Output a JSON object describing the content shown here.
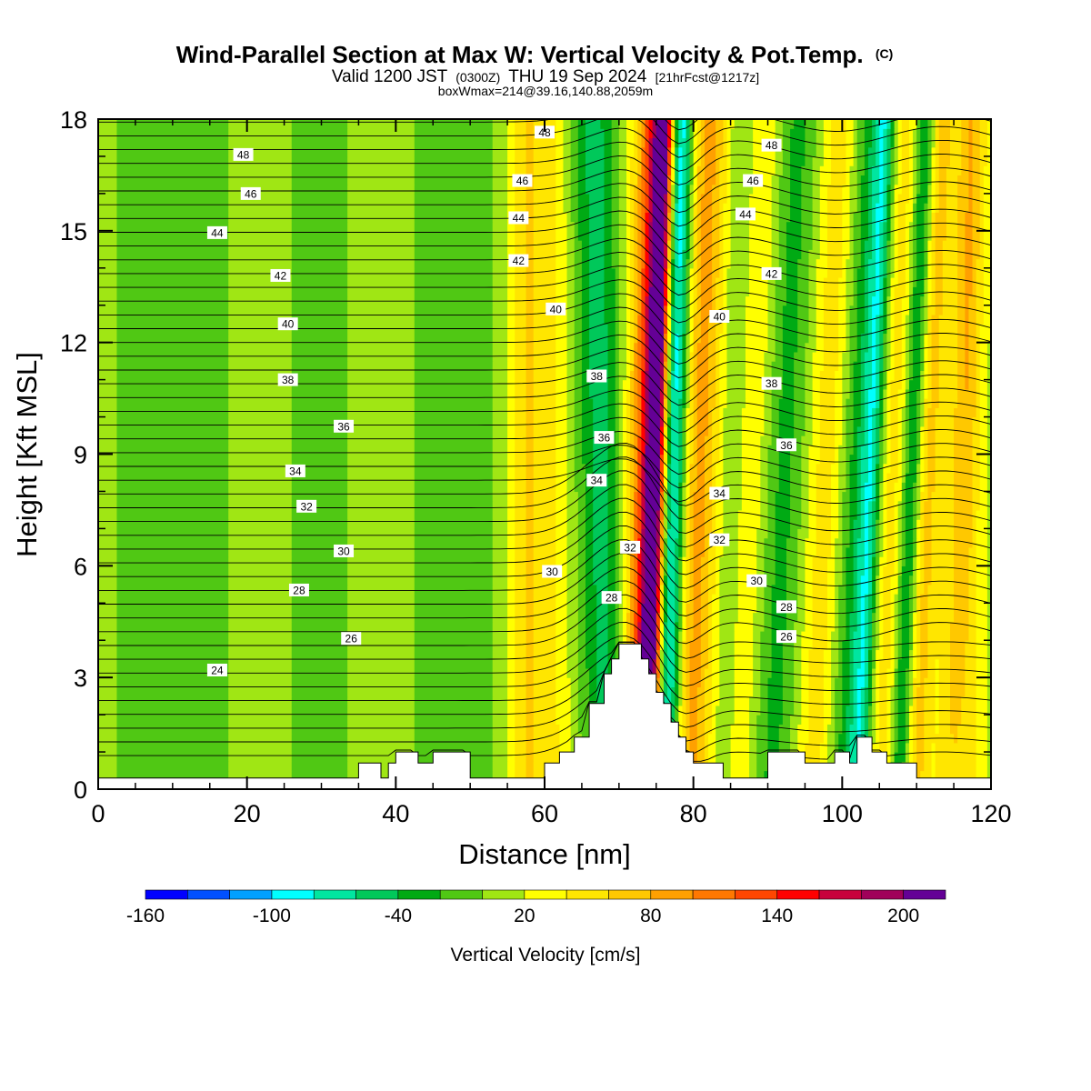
{
  "header": {
    "title": "Wind-Parallel Section at Max W: Vertical Velocity & Pot.Temp.",
    "copyright_mark": "(C)",
    "subtitle_valid": "Valid 1200 JST",
    "subtitle_utc": "(0300Z)",
    "subtitle_date": "THU 19 Sep 2024",
    "subtitle_fcst": "[21hrFcst@1217z]",
    "subtitle_box": "boxWmax=214@39.16,140.88,2059m"
  },
  "chart_data": {
    "type": "heatmap",
    "xlabel": "Distance [nm]",
    "ylabel": "Height [Kft MSL]",
    "xlim": [
      0,
      120
    ],
    "ylim": [
      0,
      18
    ],
    "x_ticks": [
      0,
      20,
      40,
      60,
      80,
      100,
      120
    ],
    "x_tick_labels": [
      "0",
      "20",
      "40",
      "60",
      "80",
      "100",
      "120"
    ],
    "y_ticks": [
      0,
      3,
      6,
      9,
      12,
      15,
      18
    ],
    "y_tick_labels": [
      "0",
      "3",
      "6",
      "9",
      "12",
      "15",
      "18"
    ],
    "grid": false,
    "colorbar": {
      "title": "Vertical Velocity [cm/s]",
      "placement": "bottom",
      "bounds": [
        -160,
        -140,
        -120,
        -100,
        -80,
        -60,
        -40,
        -20,
        0,
        20,
        40,
        60,
        80,
        100,
        120,
        140,
        160,
        180,
        200,
        220
      ],
      "colors": [
        "#0000ff",
        "#0050ff",
        "#00a0ff",
        "#00ffff",
        "#00e6a0",
        "#00c85a",
        "#00aa14",
        "#50c814",
        "#a0e614",
        "#ffff00",
        "#ffe600",
        "#ffc800",
        "#ffa000",
        "#ff7800",
        "#ff4600",
        "#ff0000",
        "#c8003c",
        "#a0005a",
        "#640096"
      ],
      "tick_values": [
        -160,
        -100,
        -40,
        20,
        80,
        140,
        200
      ],
      "tick_labels": [
        "-160",
        "-100",
        "-40",
        "20",
        "80",
        "140",
        "200"
      ]
    },
    "terrain_kft": [
      [
        0,
        0.3
      ],
      [
        35,
        0.3
      ],
      [
        35,
        0.7
      ],
      [
        38,
        0.7
      ],
      [
        38,
        0.3
      ],
      [
        39,
        0.3
      ],
      [
        39,
        0.7
      ],
      [
        40,
        0.7
      ],
      [
        40,
        1.0
      ],
      [
        43,
        1.0
      ],
      [
        43,
        0.7
      ],
      [
        45,
        0.7
      ],
      [
        45,
        1.0
      ],
      [
        50,
        1.0
      ],
      [
        50,
        0.3
      ],
      [
        60,
        0.3
      ],
      [
        60,
        0.7
      ],
      [
        62,
        0.7
      ],
      [
        62,
        1.0
      ],
      [
        64,
        1.0
      ],
      [
        64,
        1.4
      ],
      [
        66,
        1.4
      ],
      [
        66,
        2.3
      ],
      [
        68,
        2.3
      ],
      [
        68,
        3.1
      ],
      [
        69,
        3.1
      ],
      [
        69,
        3.5
      ],
      [
        70,
        3.5
      ],
      [
        70,
        3.9
      ],
      [
        73,
        3.9
      ],
      [
        73,
        3.5
      ],
      [
        74,
        3.5
      ],
      [
        74,
        3.1
      ],
      [
        75,
        3.1
      ],
      [
        75,
        2.6
      ],
      [
        76,
        2.6
      ],
      [
        76,
        2.3
      ],
      [
        77,
        2.3
      ],
      [
        77,
        1.8
      ],
      [
        78,
        1.8
      ],
      [
        78,
        1.4
      ],
      [
        79,
        1.4
      ],
      [
        79,
        1.0
      ],
      [
        80,
        1.0
      ],
      [
        80,
        0.7
      ],
      [
        84,
        0.7
      ],
      [
        84,
        0.3
      ],
      [
        90,
        0.3
      ],
      [
        90,
        1.0
      ],
      [
        95,
        1.0
      ],
      [
        95,
        0.7
      ],
      [
        99,
        0.7
      ],
      [
        99,
        1.0
      ],
      [
        101,
        1.0
      ],
      [
        101,
        0.7
      ],
      [
        102,
        0.7
      ],
      [
        102,
        1.4
      ],
      [
        104,
        1.4
      ],
      [
        104,
        1.0
      ],
      [
        106,
        1.0
      ],
      [
        106,
        0.7
      ],
      [
        110,
        0.7
      ],
      [
        110,
        0.3
      ],
      [
        120,
        0.3
      ]
    ],
    "w_features": [
      {
        "x": 76.5,
        "halfwidth": 2.0,
        "tilt": 0.12,
        "value": -160
      },
      {
        "x": 74.5,
        "halfwidth": 1.5,
        "tilt": 0.12,
        "value": 200
      },
      {
        "x": 73.0,
        "halfwidth": 2.5,
        "tilt": 0.12,
        "value": 110
      },
      {
        "x": 80.5,
        "halfwidth": 4.0,
        "tilt": 0.15,
        "value": 90
      },
      {
        "x": 84.0,
        "halfwidth": 3.0,
        "tilt": 0.15,
        "value": -60
      },
      {
        "x": 68.0,
        "halfwidth": 3.0,
        "tilt": -0.1,
        "value": -60
      },
      {
        "x": 86.5,
        "halfwidth": 3.0,
        "tilt": 0.2,
        "value": 40
      },
      {
        "x": 91.0,
        "halfwidth": 3.0,
        "tilt": 0.2,
        "value": -40
      },
      {
        "x": 97.0,
        "halfwidth": 2.5,
        "tilt": 0.2,
        "value": 40
      },
      {
        "x": 101.0,
        "halfwidth": 2.5,
        "tilt": 0.2,
        "value": -40
      },
      {
        "x": 103.0,
        "halfwidth": 1.5,
        "tilt": 0.2,
        "value": -80
      },
      {
        "x": 106.0,
        "halfwidth": 2.5,
        "tilt": 0.2,
        "value": 40
      },
      {
        "x": 108.5,
        "halfwidth": 1.5,
        "tilt": 0.2,
        "value": -80
      },
      {
        "x": 110.5,
        "halfwidth": 2.0,
        "tilt": 0.2,
        "value": 60
      },
      {
        "x": 115.0,
        "halfwidth": 2.0,
        "tilt": 0.2,
        "value": 40
      },
      {
        "x": 117.0,
        "halfwidth": 2.0,
        "tilt": 0.0,
        "value": 30
      },
      {
        "x": 60.0,
        "halfwidth": 3.0,
        "tilt": 0.0,
        "value": 40
      },
      {
        "x": 50.0,
        "halfwidth": 3.0,
        "tilt": 0.0,
        "value": -30
      },
      {
        "x": 57.0,
        "halfwidth": 2.0,
        "tilt": 0.0,
        "value": 30
      },
      {
        "x": 44.5,
        "halfwidth": 2.0,
        "tilt": 0.0,
        "value": -30
      },
      {
        "x": 10.0,
        "halfwidth": 9.0,
        "tilt": 0.0,
        "value": -25
      },
      {
        "x": 30.0,
        "halfwidth": 5.0,
        "tilt": 0.0,
        "value": -20
      }
    ],
    "theta_label_values": [
      24,
      26,
      28,
      30,
      32,
      34,
      36,
      38,
      40,
      42,
      44,
      46,
      48
    ],
    "contour_labels": [
      {
        "text": "48",
        "x": 19.5,
        "y": 17.05
      },
      {
        "text": "46",
        "x": 20.5,
        "y": 16.0
      },
      {
        "text": "44",
        "x": 16.0,
        "y": 14.95
      },
      {
        "text": "42",
        "x": 24.5,
        "y": 13.8
      },
      {
        "text": "40",
        "x": 25.5,
        "y": 12.5
      },
      {
        "text": "38",
        "x": 25.5,
        "y": 11.0
      },
      {
        "text": "36",
        "x": 33.0,
        "y": 9.75
      },
      {
        "text": "34",
        "x": 26.5,
        "y": 8.55
      },
      {
        "text": "32",
        "x": 28.0,
        "y": 7.6
      },
      {
        "text": "30",
        "x": 33.0,
        "y": 6.4
      },
      {
        "text": "28",
        "x": 27.0,
        "y": 5.35
      },
      {
        "text": "26",
        "x": 34.0,
        "y": 4.05
      },
      {
        "text": "24",
        "x": 16.0,
        "y": 3.2
      },
      {
        "text": "48",
        "x": 60.0,
        "y": 17.65
      },
      {
        "text": "46",
        "x": 57.0,
        "y": 16.35
      },
      {
        "text": "44",
        "x": 56.5,
        "y": 15.35
      },
      {
        "text": "42",
        "x": 56.5,
        "y": 14.2
      },
      {
        "text": "40",
        "x": 61.5,
        "y": 12.9
      },
      {
        "text": "38",
        "x": 67.0,
        "y": 11.1
      },
      {
        "text": "36",
        "x": 68.0,
        "y": 9.45
      },
      {
        "text": "34",
        "x": 67.0,
        "y": 8.3
      },
      {
        "text": "32",
        "x": 71.5,
        "y": 6.5
      },
      {
        "text": "30",
        "x": 61.0,
        "y": 5.85
      },
      {
        "text": "28",
        "x": 69.0,
        "y": 5.15
      },
      {
        "text": "48",
        "x": 90.5,
        "y": 17.3
      },
      {
        "text": "46",
        "x": 88.0,
        "y": 16.35
      },
      {
        "text": "44",
        "x": 87.0,
        "y": 15.45
      },
      {
        "text": "42",
        "x": 90.5,
        "y": 13.85
      },
      {
        "text": "40",
        "x": 83.5,
        "y": 12.7
      },
      {
        "text": "38",
        "x": 90.5,
        "y": 10.9
      },
      {
        "text": "36",
        "x": 92.5,
        "y": 9.25
      },
      {
        "text": "34",
        "x": 83.5,
        "y": 7.95
      },
      {
        "text": "32",
        "x": 83.5,
        "y": 6.7
      },
      {
        "text": "30",
        "x": 88.5,
        "y": 5.6
      },
      {
        "text": "28",
        "x": 92.5,
        "y": 4.9
      },
      {
        "text": "26",
        "x": 92.5,
        "y": 4.1
      }
    ]
  }
}
